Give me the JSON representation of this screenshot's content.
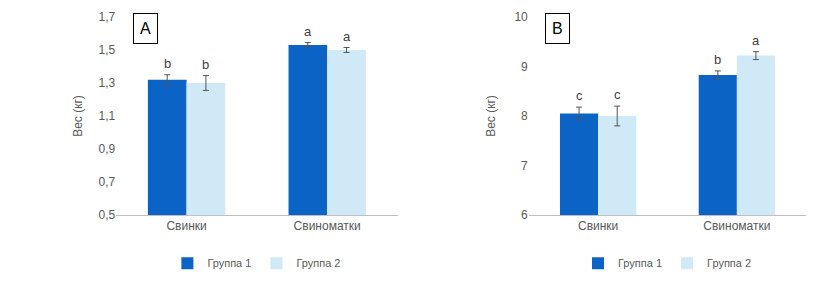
{
  "chart_data": [
    {
      "type": "bar",
      "title": "A",
      "y_label": "Вес (кг)",
      "categories": [
        "Свинки",
        "Свиноматки"
      ],
      "series": [
        {
          "name": "Группа 1",
          "color": "#0b63c5",
          "values": [
            1.32,
            1.53
          ],
          "errors": [
            0.03,
            0.015
          ],
          "letters": [
            "b",
            "a"
          ]
        },
        {
          "name": "Группа 2",
          "color": "#cfe9f7",
          "values": [
            1.3,
            1.5
          ],
          "errors": [
            0.045,
            0.015
          ],
          "letters": [
            "b",
            "a"
          ]
        }
      ],
      "ylim": [
        0.5,
        1.7
      ],
      "yticks": [
        {
          "value": 0.5,
          "label": "0,5"
        },
        {
          "value": 0.7,
          "label": "0,7"
        },
        {
          "value": 0.9,
          "label": "0,9"
        },
        {
          "value": 1.1,
          "label": "1,1"
        },
        {
          "value": 1.3,
          "label": "1,3"
        },
        {
          "value": 1.5,
          "label": "1,5"
        },
        {
          "value": 1.7,
          "label": "1,7"
        }
      ],
      "grid": false,
      "legend": "bottom"
    },
    {
      "type": "bar",
      "title": "B",
      "y_label": "Вес (кг)",
      "categories": [
        "Свинки",
        "Свиноматки"
      ],
      "series": [
        {
          "name": "Группа 1",
          "color": "#0b63c5",
          "values": [
            8.05,
            8.83
          ],
          "errors": [
            0.13,
            0.08
          ],
          "letters": [
            "c",
            "b"
          ]
        },
        {
          "name": "Группа 2",
          "color": "#cfe9f7",
          "values": [
            8.0,
            9.22
          ],
          "errors": [
            0.2,
            0.08
          ],
          "letters": [
            "c",
            "a"
          ]
        }
      ],
      "ylim": [
        6,
        10
      ],
      "yticks": [
        6,
        7,
        8,
        9,
        10
      ],
      "grid": false,
      "legend": "bottom"
    }
  ]
}
